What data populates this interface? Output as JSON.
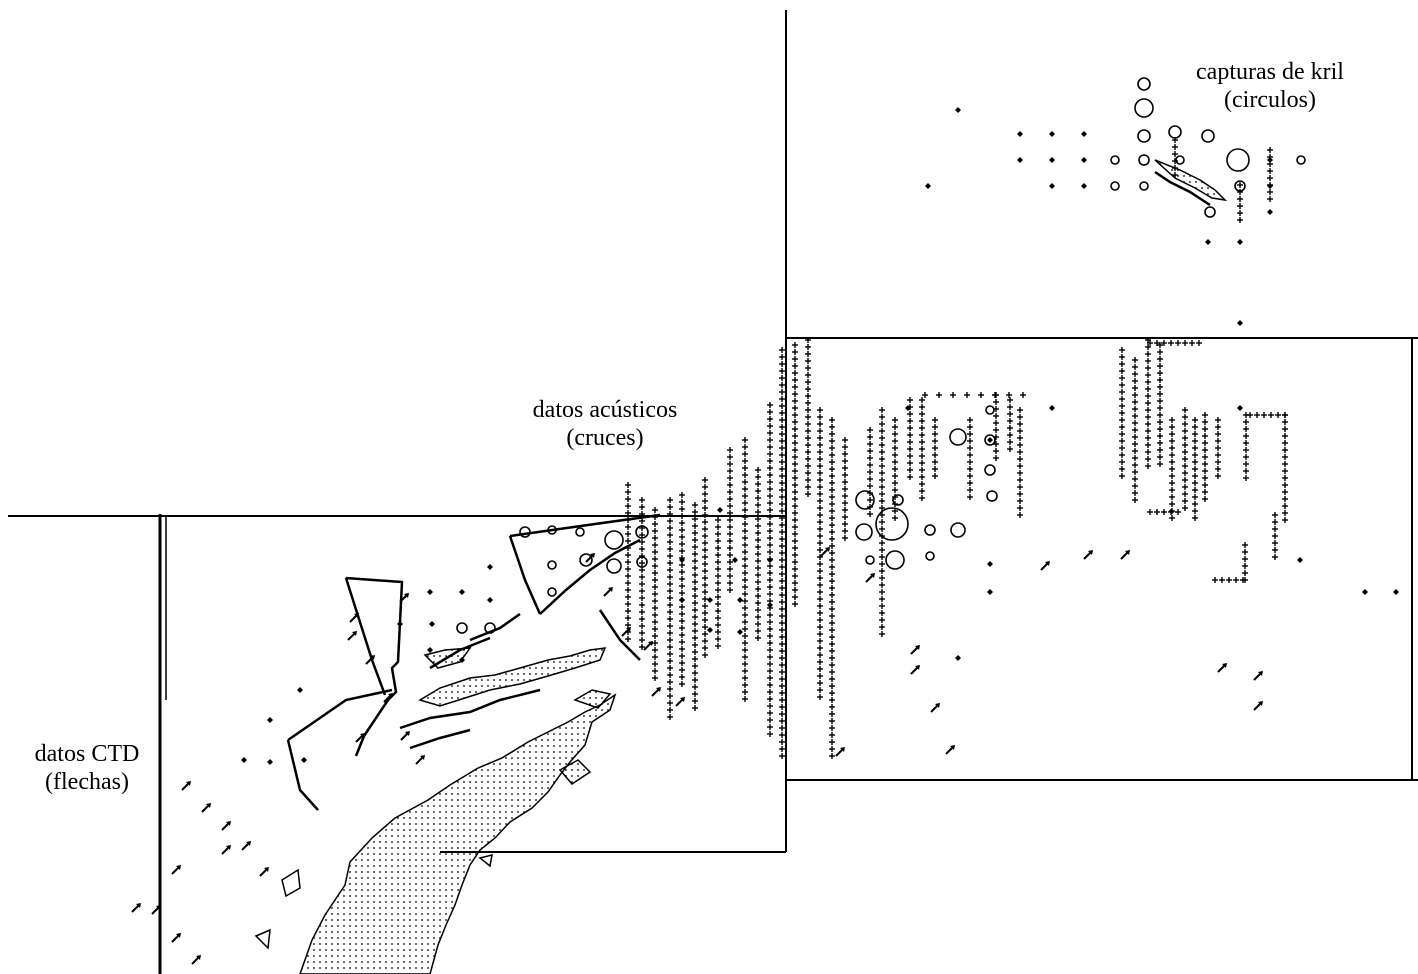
{
  "labels": {
    "krill_line1": "capturas de kril",
    "krill_line2": "(circulos)",
    "acoustic_line1": "datos acústicos",
    "acoustic_line2": "(cruces)",
    "ctd_line1": "datos CTD",
    "ctd_line2": "(flechas)"
  },
  "colors": {
    "ink": "#000000",
    "land_fill": "#f2f2f2",
    "background": "#ffffff"
  },
  "symbols": {
    "krill_catch": "circle",
    "acoustic_data": "cross",
    "ctd_data": "arrow",
    "station": "diamond"
  }
}
